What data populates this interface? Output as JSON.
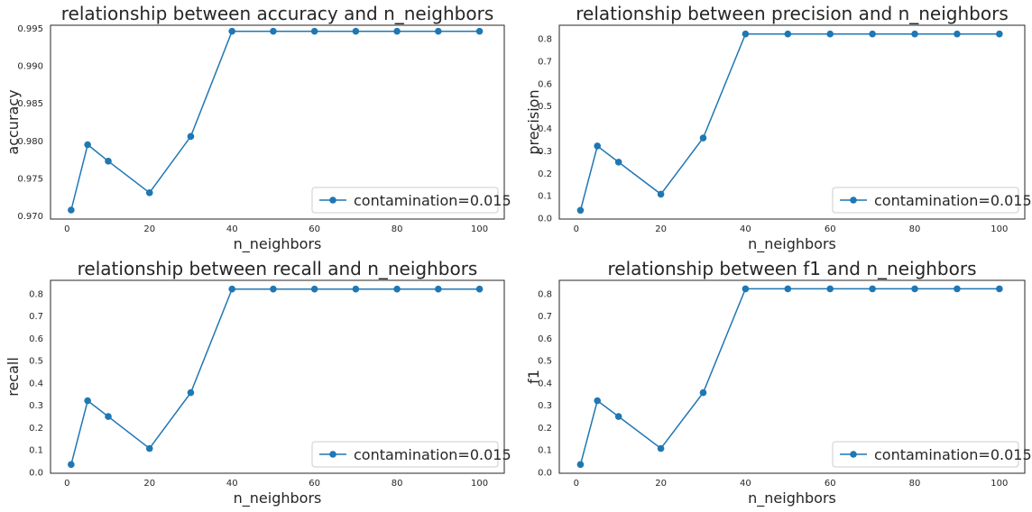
{
  "colors": {
    "series": "#1f77b4",
    "spine": "#262626",
    "legend_border": "#cccccc",
    "background": "#ffffff"
  },
  "chart_data": [
    {
      "type": "line",
      "title": "relationship between accuracy and n_neighbors",
      "xlabel": "n_neighbors",
      "ylabel": "accuracy",
      "x": [
        1,
        5,
        10,
        20,
        30,
        40,
        50,
        60,
        70,
        80,
        90,
        100
      ],
      "series": [
        {
          "name": "contamination=0.015",
          "values": [
            0.9708,
            0.9795,
            0.9773,
            0.9731,
            0.9806,
            0.9946,
            0.9946,
            0.9946,
            0.9946,
            0.9946,
            0.9946,
            0.9946
          ]
        }
      ],
      "xlim": [
        -4,
        106
      ],
      "ylim": [
        0.9696,
        0.9954
      ],
      "xticks": [
        0,
        20,
        40,
        60,
        80,
        100
      ],
      "yticks": [
        0.97,
        0.975,
        0.98,
        0.985,
        0.99,
        0.995
      ],
      "ytick_labels": [
        "0.970",
        "0.975",
        "0.980",
        "0.985",
        "0.990",
        "0.995"
      ],
      "legend": "lower-right",
      "grid": false
    },
    {
      "type": "line",
      "title": "relationship between precision and n_neighbors",
      "xlabel": "n_neighbors",
      "ylabel": "precision",
      "x": [
        1,
        5,
        10,
        20,
        30,
        40,
        50,
        60,
        70,
        80,
        90,
        100
      ],
      "series": [
        {
          "name": "contamination=0.015",
          "values": [
            0.035,
            0.322,
            0.25,
            0.107,
            0.358,
            0.822,
            0.822,
            0.822,
            0.822,
            0.822,
            0.822,
            0.822
          ]
        }
      ],
      "xlim": [
        -4,
        106
      ],
      "ylim": [
        -0.004,
        0.861
      ],
      "xticks": [
        0,
        20,
        40,
        60,
        80,
        100
      ],
      "yticks": [
        0,
        0.1,
        0.2,
        0.3,
        0.4,
        0.5,
        0.6,
        0.7,
        0.8
      ],
      "ytick_labels": [
        "0.0",
        "0.1",
        "0.2",
        "0.3",
        "0.4",
        "0.5",
        "0.6",
        "0.7",
        "0.8"
      ],
      "legend": "lower-right",
      "grid": false
    },
    {
      "type": "line",
      "title": "relationship between recall and n_neighbors",
      "xlabel": "n_neighbors",
      "ylabel": "recall",
      "x": [
        1,
        5,
        10,
        20,
        30,
        40,
        50,
        60,
        70,
        80,
        90,
        100
      ],
      "series": [
        {
          "name": "contamination=0.015",
          "values": [
            0.035,
            0.321,
            0.25,
            0.107,
            0.357,
            0.821,
            0.821,
            0.821,
            0.821,
            0.821,
            0.821,
            0.821
          ]
        }
      ],
      "xlim": [
        -4,
        106
      ],
      "ylim": [
        -0.004,
        0.86
      ],
      "xticks": [
        0,
        20,
        40,
        60,
        80,
        100
      ],
      "yticks": [
        0,
        0.1,
        0.2,
        0.3,
        0.4,
        0.5,
        0.6,
        0.7,
        0.8
      ],
      "ytick_labels": [
        "0.0",
        "0.1",
        "0.2",
        "0.3",
        "0.4",
        "0.5",
        "0.6",
        "0.7",
        "0.8"
      ],
      "legend": "lower-right",
      "grid": false
    },
    {
      "type": "line",
      "title": "relationship between f1 and n_neighbors",
      "xlabel": "n_neighbors",
      "ylabel": "f1",
      "x": [
        1,
        5,
        10,
        20,
        30,
        40,
        50,
        60,
        70,
        80,
        90,
        100
      ],
      "series": [
        {
          "name": "contamination=0.015",
          "values": [
            0.035,
            0.321,
            0.25,
            0.107,
            0.357,
            0.822,
            0.822,
            0.822,
            0.822,
            0.822,
            0.822,
            0.822
          ]
        }
      ],
      "xlim": [
        -4,
        106
      ],
      "ylim": [
        -0.004,
        0.86
      ],
      "xticks": [
        0,
        20,
        40,
        60,
        80,
        100
      ],
      "yticks": [
        0,
        0.1,
        0.2,
        0.3,
        0.4,
        0.5,
        0.6,
        0.7,
        0.8
      ],
      "ytick_labels": [
        "0.0",
        "0.1",
        "0.2",
        "0.3",
        "0.4",
        "0.5",
        "0.6",
        "0.7",
        "0.8"
      ],
      "legend": "lower-right",
      "grid": false
    }
  ]
}
